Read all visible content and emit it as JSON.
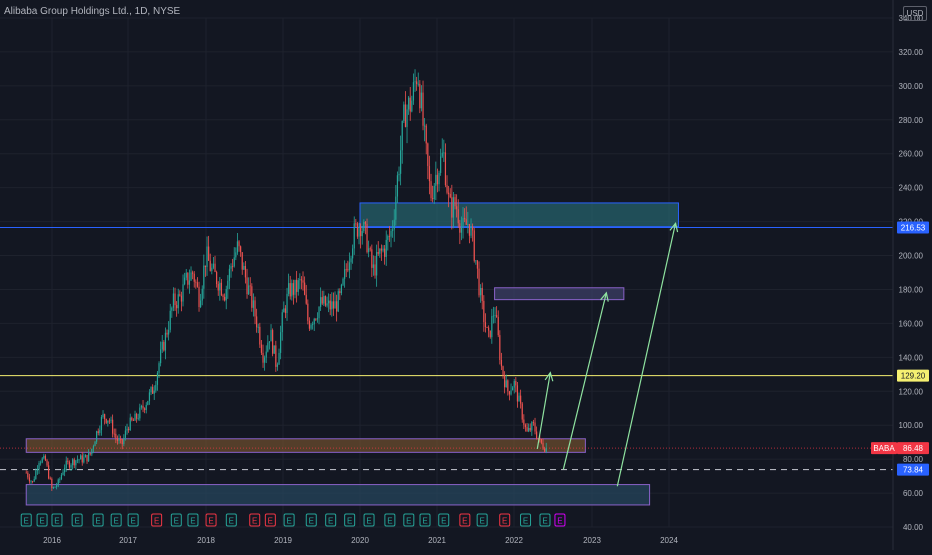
{
  "header": {
    "title": "Alibaba Group Holdings Ltd., 1D, NYSE",
    "currency": "USD"
  },
  "chart_data": {
    "type": "candlestick",
    "title": "Alibaba Group Holdings Ltd., 1D, NYSE",
    "symbol": "BABA",
    "interval": "1D",
    "exchange": "NYSE",
    "currency": "USD",
    "ylim": [
      40,
      340
    ],
    "y_ticks": [
      "340.00",
      "320.00",
      "300.00",
      "280.00",
      "260.00",
      "240.00",
      "220.00",
      "200.00",
      "180.00",
      "160.00",
      "140.00",
      "120.00",
      "100.00",
      "80.00",
      "60.00",
      "40.00"
    ],
    "x_ticks": [
      "2016",
      "2017",
      "2018",
      "2019",
      "2020",
      "2021",
      "2022",
      "2023",
      "2024"
    ],
    "price_labels": [
      {
        "text": "216.53",
        "value": 216.53,
        "color": "#2962ff"
      },
      {
        "text": "129.20",
        "value": 129.2,
        "color": "#f5f071"
      },
      {
        "text": "86.48",
        "value": 86.48,
        "color": "#f23645",
        "tag": "BABA"
      },
      {
        "text": "73.84",
        "value": 73.84,
        "color": "#2962ff"
      }
    ],
    "price_path": [
      [
        "2015-09-01",
        72
      ],
      [
        "2015-10-01",
        66
      ],
      [
        "2015-11-01",
        80
      ],
      [
        "2015-12-01",
        79
      ],
      [
        "2016-01-01",
        62
      ],
      [
        "2016-02-01",
        66
      ],
      [
        "2016-03-01",
        76
      ],
      [
        "2016-04-01",
        78
      ],
      [
        "2016-05-01",
        80
      ],
      [
        "2016-06-01",
        80
      ],
      [
        "2016-07-01",
        82
      ],
      [
        "2016-08-01",
        95
      ],
      [
        "2016-09-01",
        105
      ],
      [
        "2016-10-01",
        104
      ],
      [
        "2016-11-01",
        93
      ],
      [
        "2016-12-01",
        88
      ],
      [
        "2017-01-01",
        100
      ],
      [
        "2017-02-01",
        103
      ],
      [
        "2017-03-01",
        108
      ],
      [
        "2017-04-01",
        115
      ],
      [
        "2017-05-01",
        122
      ],
      [
        "2017-06-01",
        140
      ],
      [
        "2017-07-01",
        155
      ],
      [
        "2017-08-01",
        172
      ],
      [
        "2017-09-01",
        175
      ],
      [
        "2017-10-01",
        185
      ],
      [
        "2017-11-01",
        190
      ],
      [
        "2017-12-01",
        175
      ],
      [
        "2018-01-01",
        200
      ],
      [
        "2018-02-01",
        190
      ],
      [
        "2018-03-01",
        185
      ],
      [
        "2018-04-01",
        178
      ],
      [
        "2018-05-01",
        195
      ],
      [
        "2018-06-01",
        205
      ],
      [
        "2018-07-01",
        190
      ],
      [
        "2018-08-01",
        175
      ],
      [
        "2018-09-01",
        160
      ],
      [
        "2018-10-01",
        140
      ],
      [
        "2018-11-01",
        155
      ],
      [
        "2018-12-01",
        135
      ],
      [
        "2019-01-01",
        165
      ],
      [
        "2019-02-01",
        180
      ],
      [
        "2019-03-01",
        180
      ],
      [
        "2019-04-01",
        185
      ],
      [
        "2019-05-01",
        160
      ],
      [
        "2019-06-01",
        165
      ],
      [
        "2019-07-01",
        172
      ],
      [
        "2019-08-01",
        170
      ],
      [
        "2019-09-01",
        170
      ],
      [
        "2019-10-01",
        175
      ],
      [
        "2019-11-01",
        195
      ],
      [
        "2019-12-01",
        212
      ],
      [
        "2020-01-01",
        220
      ],
      [
        "2020-02-01",
        210
      ],
      [
        "2020-03-01",
        190
      ],
      [
        "2020-04-01",
        200
      ],
      [
        "2020-05-01",
        205
      ],
      [
        "2020-06-01",
        215
      ],
      [
        "2020-07-01",
        250
      ],
      [
        "2020-08-01",
        285
      ],
      [
        "2020-09-01",
        290
      ],
      [
        "2020-10-01",
        310
      ],
      [
        "2020-11-01",
        270
      ],
      [
        "2020-12-01",
        235
      ],
      [
        "2021-01-01",
        250
      ],
      [
        "2021-02-01",
        260
      ],
      [
        "2021-03-01",
        228
      ],
      [
        "2021-04-01",
        230
      ],
      [
        "2021-05-01",
        215
      ],
      [
        "2021-06-01",
        220
      ],
      [
        "2021-07-01",
        200
      ],
      [
        "2021-08-01",
        170
      ],
      [
        "2021-09-01",
        150
      ],
      [
        "2021-10-01",
        170
      ],
      [
        "2021-11-01",
        135
      ],
      [
        "2021-12-01",
        120
      ],
      [
        "2022-01-01",
        125
      ],
      [
        "2022-02-01",
        110
      ],
      [
        "2022-03-01",
        95
      ],
      [
        "2022-04-01",
        100
      ],
      [
        "2022-05-01",
        90
      ],
      [
        "2022-06-01",
        86.48
      ]
    ],
    "zones": [
      {
        "x0": "2020-01-01",
        "x1": "2024-02-15",
        "y0": 217,
        "y1": 231,
        "fill": "#26616b",
        "border": "#2962ff"
      },
      {
        "x0": "2021-10-01",
        "x1": "2023-06-01",
        "y0": 174,
        "y1": 181,
        "fill": "#3c3f66",
        "border": "#8a62c9"
      },
      {
        "x0": "2015-09-01",
        "x1": "2022-12-01",
        "y0": 84,
        "y1": 92,
        "fill": "#6b4c2d",
        "border": "#8a62c9"
      },
      {
        "x0": "2015-09-01",
        "x1": "2023-10-01",
        "y0": 53,
        "y1": 65,
        "fill": "#26465c",
        "border": "#8a62c9"
      }
    ],
    "hlines": [
      {
        "value": 216.53,
        "color": "#2962ff",
        "style": "solid"
      },
      {
        "value": 129.2,
        "color": "#f5f071",
        "style": "solid"
      },
      {
        "value": 86.48,
        "color": "#f23645",
        "style": "dotted"
      },
      {
        "value": 73.84,
        "color": "#b2b5be",
        "style": "dashed"
      }
    ],
    "arrows": [
      {
        "from": [
          "2022-04-20",
          86
        ],
        "to": [
          "2022-06-20",
          131
        ]
      },
      {
        "from": [
          "2022-08-20",
          74
        ],
        "to": [
          "2023-03-10",
          178
        ]
      },
      {
        "from": [
          "2023-05-01",
          64
        ],
        "to": [
          "2024-02-01",
          219
        ]
      }
    ],
    "event_markers": [
      {
        "t": "2015-09-01",
        "label": "E",
        "color": "#26a69a"
      },
      {
        "t": "2015-11-15",
        "label": "E",
        "color": "#26a69a"
      },
      {
        "t": "2016-01-25",
        "label": "E",
        "color": "#26a69a"
      },
      {
        "t": "2016-05-01",
        "label": "E",
        "color": "#26a69a"
      },
      {
        "t": "2016-08-10",
        "label": "E",
        "color": "#26a69a"
      },
      {
        "t": "2016-11-05",
        "label": "E",
        "color": "#26a69a"
      },
      {
        "t": "2017-01-25",
        "label": "E",
        "color": "#26a69a"
      },
      {
        "t": "2017-05-15",
        "label": "E",
        "color": "#f23645"
      },
      {
        "t": "2017-08-15",
        "label": "E",
        "color": "#26a69a"
      },
      {
        "t": "2017-11-01",
        "label": "E",
        "color": "#26a69a"
      },
      {
        "t": "2018-01-25",
        "label": "E",
        "color": "#f23645"
      },
      {
        "t": "2018-05-01",
        "label": "E",
        "color": "#26a69a"
      },
      {
        "t": "2018-08-20",
        "label": "E",
        "color": "#f23645"
      },
      {
        "t": "2018-11-02",
        "label": "E",
        "color": "#f23645"
      },
      {
        "t": "2019-01-30",
        "label": "E",
        "color": "#26a69a"
      },
      {
        "t": "2019-05-15",
        "label": "E",
        "color": "#26a69a"
      },
      {
        "t": "2019-08-15",
        "label": "E",
        "color": "#26a69a"
      },
      {
        "t": "2019-11-13",
        "label": "E",
        "color": "#26a69a"
      },
      {
        "t": "2020-02-13",
        "label": "E",
        "color": "#26a69a"
      },
      {
        "t": "2020-05-22",
        "label": "E",
        "color": "#26a69a"
      },
      {
        "t": "2020-08-20",
        "label": "E",
        "color": "#26a69a"
      },
      {
        "t": "2020-11-05",
        "label": "E",
        "color": "#26a69a"
      },
      {
        "t": "2021-02-02",
        "label": "E",
        "color": "#26a69a"
      },
      {
        "t": "2021-05-13",
        "label": "E",
        "color": "#f23645"
      },
      {
        "t": "2021-08-03",
        "label": "E",
        "color": "#26a69a"
      },
      {
        "t": "2021-11-18",
        "label": "E",
        "color": "#f23645"
      },
      {
        "t": "2022-02-24",
        "label": "E",
        "color": "#26a69a"
      },
      {
        "t": "2022-05-26",
        "label": "E",
        "color": "#26a69a"
      },
      {
        "t": "2022-08-04",
        "label": "E",
        "color": "#d500f9"
      }
    ]
  },
  "colors": {
    "background": "#131722",
    "grid": "#1e222d",
    "text": "#b2b5be",
    "up": "#26a69a",
    "down": "#ef5350",
    "arrow": "#8fe3a0"
  }
}
